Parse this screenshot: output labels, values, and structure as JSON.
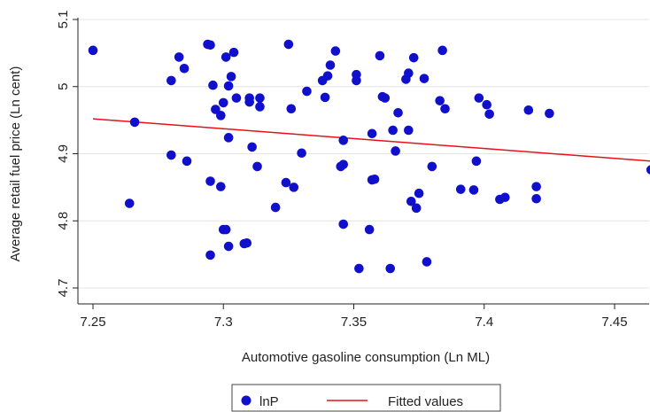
{
  "chart_data": {
    "type": "scatter",
    "xlabel": "Automotive gasoline consumption (Ln ML)",
    "ylabel": "Average retail fuel price (Ln cent)",
    "xlim": [
      7.25,
      7.465
    ],
    "ylim": [
      4.7,
      5.1
    ],
    "xticks": [
      "7.25",
      "7.3",
      "7.35",
      "7.4",
      "7.45"
    ],
    "yticks": [
      "4.7",
      "4.8",
      "4.9",
      "5",
      "5.1"
    ],
    "grid": "horizontal",
    "legend_position": "bottom",
    "colors": {
      "points": "#1010cc",
      "fit": "#e8101a"
    },
    "series": [
      {
        "name": "lnP",
        "type": "scatter",
        "points": [
          [
            7.25,
            5.054
          ],
          [
            7.264,
            4.826
          ],
          [
            7.266,
            4.947
          ],
          [
            7.28,
            4.898
          ],
          [
            7.28,
            5.009
          ],
          [
            7.283,
            5.044
          ],
          [
            7.285,
            5.027
          ],
          [
            7.286,
            4.889
          ],
          [
            7.294,
            5.063
          ],
          [
            7.295,
            5.062
          ],
          [
            7.295,
            4.859
          ],
          [
            7.295,
            4.749
          ],
          [
            7.296,
            5.002
          ],
          [
            7.297,
            4.966
          ],
          [
            7.299,
            4.957
          ],
          [
            7.299,
            4.851
          ],
          [
            7.3,
            4.976
          ],
          [
            7.3,
            4.787
          ],
          [
            7.301,
            5.044
          ],
          [
            7.301,
            4.787
          ],
          [
            7.302,
            4.924
          ],
          [
            7.302,
            5.001
          ],
          [
            7.302,
            4.762
          ],
          [
            7.303,
            5.015
          ],
          [
            7.304,
            5.051
          ],
          [
            7.305,
            4.983
          ],
          [
            7.308,
            4.766
          ],
          [
            7.309,
            4.767
          ],
          [
            7.31,
            4.983
          ],
          [
            7.31,
            4.977
          ],
          [
            7.311,
            4.91
          ],
          [
            7.313,
            4.881
          ],
          [
            7.314,
            4.983
          ],
          [
            7.314,
            4.97
          ],
          [
            7.32,
            4.82
          ],
          [
            7.324,
            4.857
          ],
          [
            7.325,
            5.063
          ],
          [
            7.326,
            4.967
          ],
          [
            7.327,
            4.85
          ],
          [
            7.33,
            4.901
          ],
          [
            7.332,
            4.993
          ],
          [
            7.338,
            5.009
          ],
          [
            7.339,
            4.984
          ],
          [
            7.34,
            5.016
          ],
          [
            7.341,
            5.032
          ],
          [
            7.343,
            5.053
          ],
          [
            7.345,
            4.881
          ],
          [
            7.346,
            4.884
          ],
          [
            7.346,
            4.92
          ],
          [
            7.346,
            4.795
          ],
          [
            7.351,
            5.018
          ],
          [
            7.351,
            5.009
          ],
          [
            7.352,
            4.729
          ],
          [
            7.356,
            4.787
          ],
          [
            7.357,
            4.93
          ],
          [
            7.357,
            4.861
          ],
          [
            7.358,
            4.862
          ],
          [
            7.36,
            5.046
          ],
          [
            7.361,
            4.985
          ],
          [
            7.362,
            4.983
          ],
          [
            7.364,
            4.729
          ],
          [
            7.365,
            4.935
          ],
          [
            7.366,
            4.904
          ],
          [
            7.367,
            4.961
          ],
          [
            7.37,
            5.011
          ],
          [
            7.371,
            5.02
          ],
          [
            7.371,
            4.935
          ],
          [
            7.372,
            4.829
          ],
          [
            7.373,
            5.043
          ],
          [
            7.374,
            4.819
          ],
          [
            7.375,
            4.841
          ],
          [
            7.377,
            5.012
          ],
          [
            7.378,
            4.739
          ],
          [
            7.38,
            4.881
          ],
          [
            7.383,
            4.979
          ],
          [
            7.384,
            5.054
          ],
          [
            7.385,
            4.967
          ],
          [
            7.391,
            4.847
          ],
          [
            7.396,
            4.846
          ],
          [
            7.397,
            4.889
          ],
          [
            7.398,
            4.983
          ],
          [
            7.401,
            4.973
          ],
          [
            7.402,
            4.959
          ],
          [
            7.406,
            4.832
          ],
          [
            7.408,
            4.835
          ],
          [
            7.417,
            4.965
          ],
          [
            7.42,
            4.851
          ],
          [
            7.42,
            4.833
          ],
          [
            7.425,
            4.96
          ],
          [
            7.464,
            4.876
          ]
        ]
      },
      {
        "name": "Fitted values",
        "type": "line",
        "points": [
          [
            7.25,
            4.952
          ],
          [
            7.464,
            4.889
          ]
        ]
      }
    ]
  }
}
